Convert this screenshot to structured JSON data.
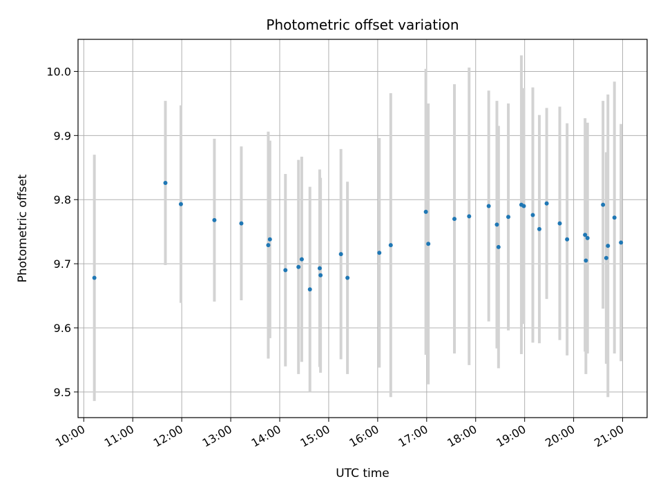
{
  "chart_data": {
    "type": "scatter",
    "title": "Photometric offset variation",
    "xlabel": "UTC time",
    "ylabel": "Photometric offset",
    "xlim": [
      "09:53",
      "21:30"
    ],
    "ylim": [
      9.46,
      10.05
    ],
    "xticks": [
      "10:00",
      "11:00",
      "12:00",
      "13:00",
      "14:00",
      "15:00",
      "16:00",
      "17:00",
      "18:00",
      "19:00",
      "20:00",
      "21:00"
    ],
    "yticks": [
      "9.5",
      "9.6",
      "9.7",
      "9.8",
      "9.9",
      "10.0"
    ],
    "grid": true,
    "point_color": "#1f77b4",
    "errorbar_color": "#d3d3d3",
    "points": [
      {
        "x": "10:13",
        "y": 9.678,
        "err": 0.192
      },
      {
        "x": "11:40",
        "y": 9.826,
        "err": 0.128
      },
      {
        "x": "11:59",
        "y": 9.793,
        "err": 0.154
      },
      {
        "x": "12:40",
        "y": 9.768,
        "err": 0.127
      },
      {
        "x": "13:13",
        "y": 9.763,
        "err": 0.12
      },
      {
        "x": "13:46",
        "y": 9.729,
        "err": 0.177
      },
      {
        "x": "13:48",
        "y": 9.738,
        "err": 0.154
      },
      {
        "x": "14:07",
        "y": 9.69,
        "err": 0.15
      },
      {
        "x": "14:23",
        "y": 9.695,
        "err": 0.167
      },
      {
        "x": "14:27",
        "y": 9.707,
        "err": 0.16
      },
      {
        "x": "14:37",
        "y": 9.66,
        "err": 0.16
      },
      {
        "x": "14:49",
        "y": 9.693,
        "err": 0.154
      },
      {
        "x": "14:50",
        "y": 9.682,
        "err": 0.152
      },
      {
        "x": "15:15",
        "y": 9.715,
        "err": 0.164
      },
      {
        "x": "15:23",
        "y": 9.678,
        "err": 0.15
      },
      {
        "x": "16:02",
        "y": 9.717,
        "err": 0.179
      },
      {
        "x": "16:16",
        "y": 9.729,
        "err": 0.237
      },
      {
        "x": "16:59",
        "y": 9.781,
        "err": 0.223
      },
      {
        "x": "17:02",
        "y": 9.731,
        "err": 0.219
      },
      {
        "x": "17:34",
        "y": 9.77,
        "err": 0.21
      },
      {
        "x": "17:52",
        "y": 9.774,
        "err": 0.232
      },
      {
        "x": "18:16",
        "y": 9.79,
        "err": 0.18
      },
      {
        "x": "18:26",
        "y": 9.761,
        "err": 0.193
      },
      {
        "x": "18:28",
        "y": 9.726,
        "err": 0.189
      },
      {
        "x": "18:40",
        "y": 9.773,
        "err": 0.177
      },
      {
        "x": "18:56",
        "y": 9.792,
        "err": 0.233
      },
      {
        "x": "18:59",
        "y": 9.79,
        "err": 0.184
      },
      {
        "x": "19:10",
        "y": 9.776,
        "err": 0.199
      },
      {
        "x": "19:18",
        "y": 9.754,
        "err": 0.178
      },
      {
        "x": "19:27",
        "y": 9.794,
        "err": 0.149
      },
      {
        "x": "19:43",
        "y": 9.763,
        "err": 0.182
      },
      {
        "x": "19:52",
        "y": 9.738,
        "err": 0.181
      },
      {
        "x": "20:14",
        "y": 9.745,
        "err": 0.182
      },
      {
        "x": "20:15",
        "y": 9.705,
        "err": 0.177
      },
      {
        "x": "20:17",
        "y": 9.74,
        "err": 0.18
      },
      {
        "x": "20:36",
        "y": 9.792,
        "err": 0.162
      },
      {
        "x": "20:40",
        "y": 9.709,
        "err": 0.165
      },
      {
        "x": "20:42",
        "y": 9.728,
        "err": 0.236
      },
      {
        "x": "20:50",
        "y": 9.772,
        "err": 0.212
      },
      {
        "x": "20:58",
        "y": 9.733,
        "err": 0.185
      }
    ]
  }
}
